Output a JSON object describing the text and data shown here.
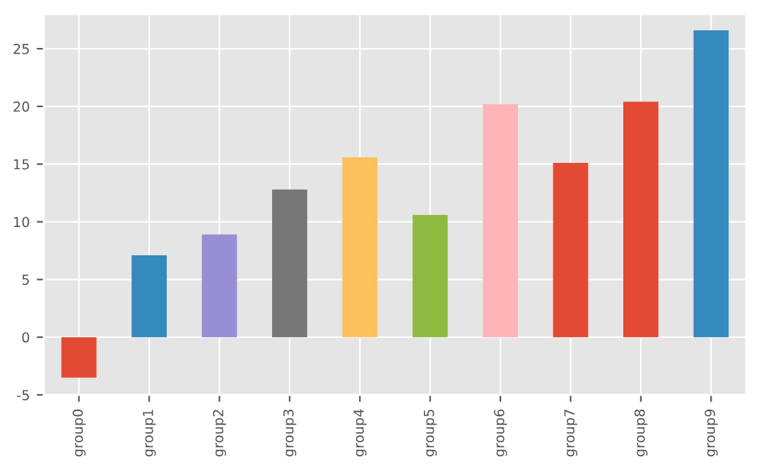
{
  "chart_data": {
    "type": "bar",
    "categories": [
      "group0",
      "group1",
      "group2",
      "group3",
      "group4",
      "group5",
      "group6",
      "group7",
      "group8",
      "group9"
    ],
    "values": [
      -3.5,
      7.1,
      8.9,
      12.8,
      15.6,
      10.6,
      20.2,
      15.1,
      20.4,
      26.6
    ],
    "colors": [
      "#e24a33",
      "#348abd",
      "#988ed5",
      "#777777",
      "#fbc15e",
      "#8eba42",
      "#ffb5b8",
      "#e24a33",
      "#e24a33",
      "#348abd"
    ],
    "ylim": [
      -5,
      28
    ],
    "yticks": [
      -5,
      0,
      5,
      10,
      15,
      20,
      25
    ],
    "grid": true
  }
}
